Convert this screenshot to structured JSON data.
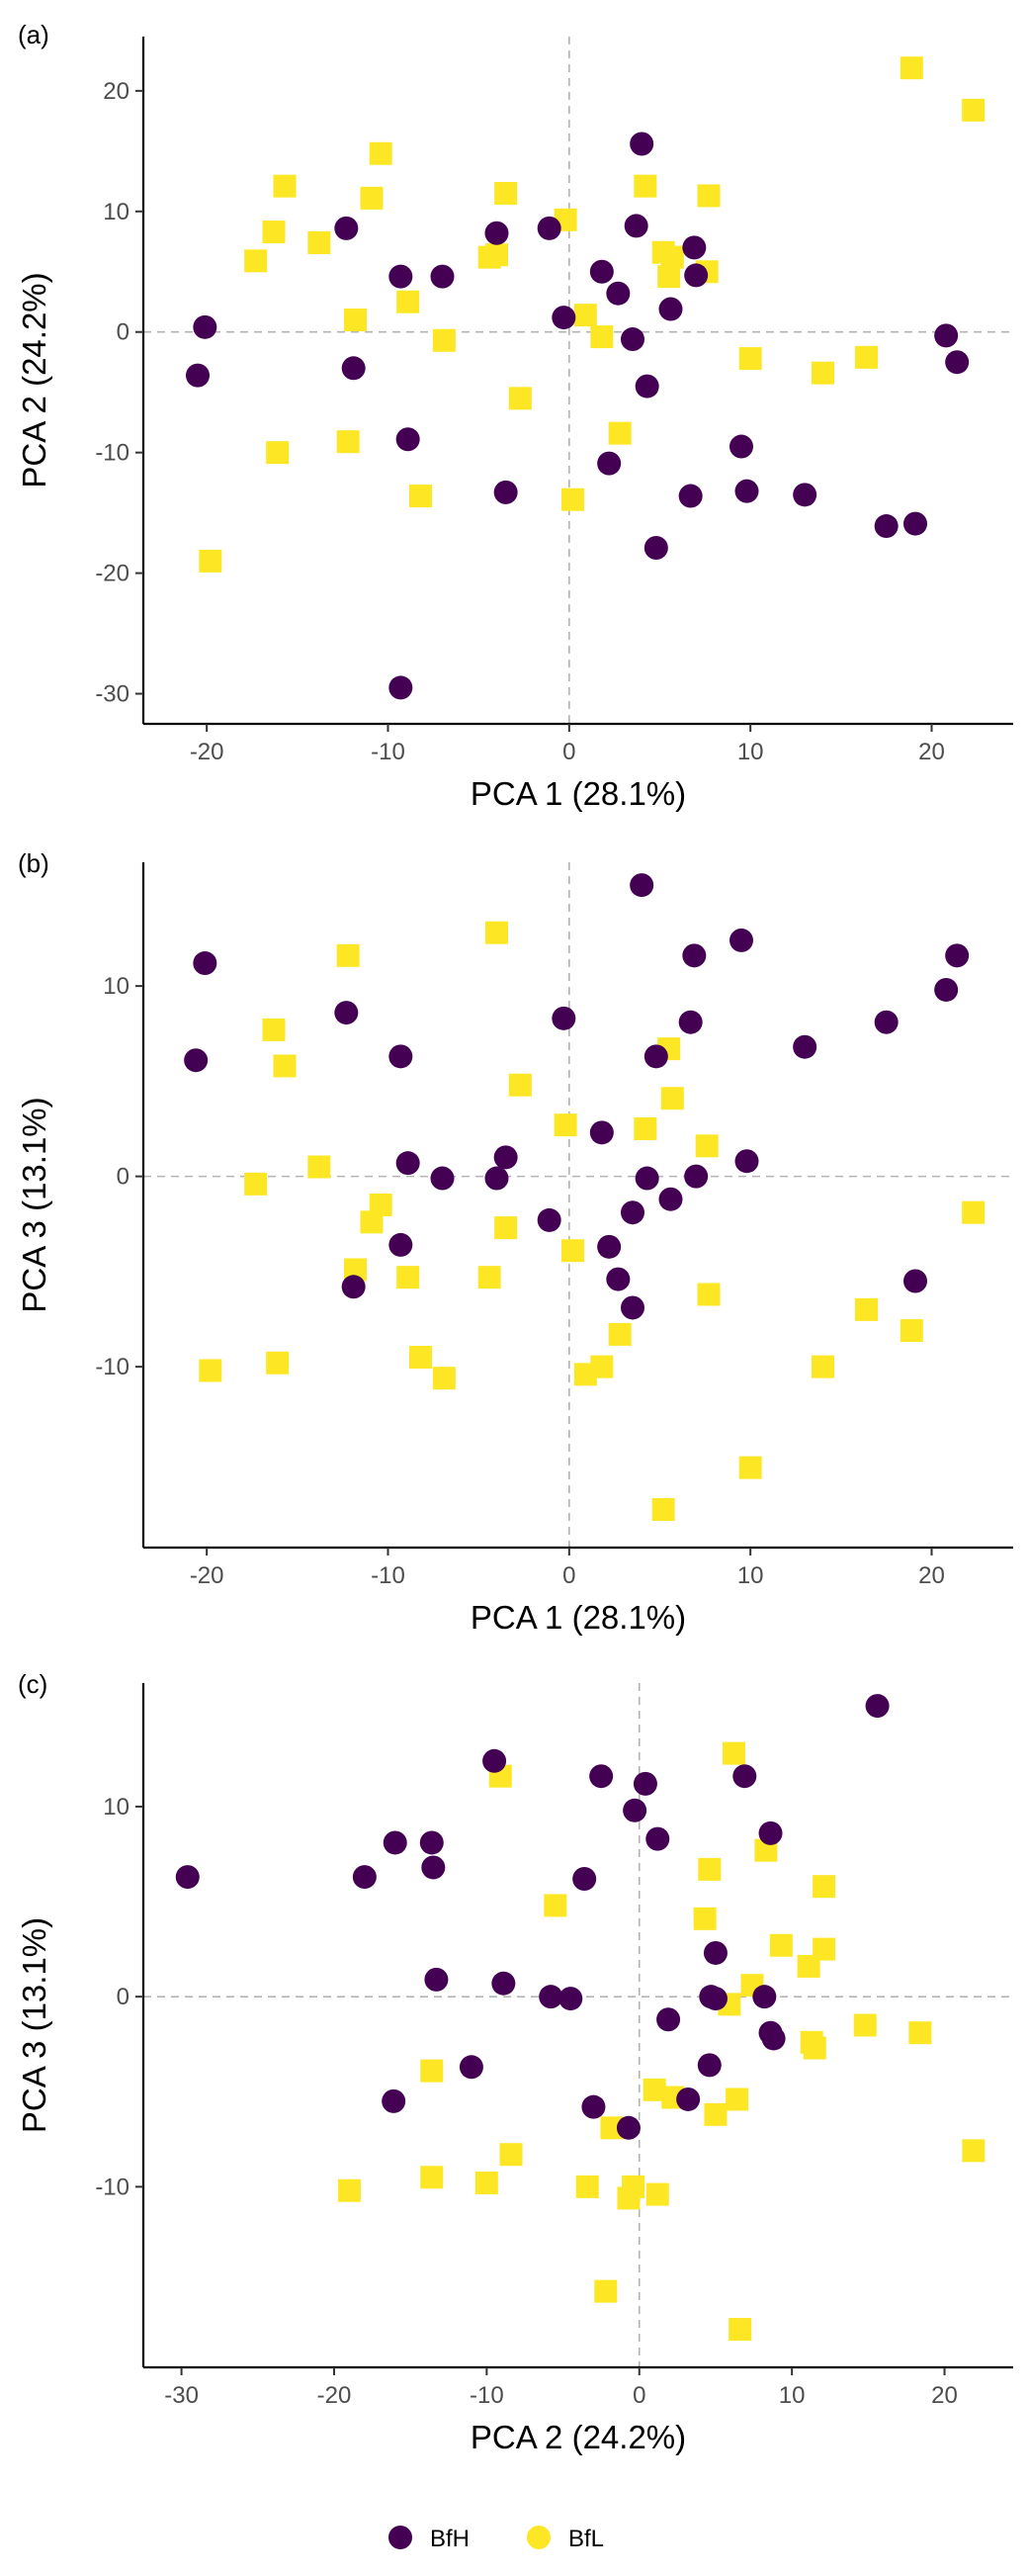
{
  "colors": {
    "BfH": "#440154",
    "BfL": "#FDE725"
  },
  "legend": [
    {
      "key": "BfH",
      "label": "BfH",
      "shape": "circle"
    },
    {
      "key": "BfL",
      "label": "BfL",
      "shape": "square"
    }
  ],
  "chart_data": [
    {
      "type": "scatter",
      "panel_label": "(a)",
      "xlabel": "PCA 1 (28.1%)",
      "ylabel": "PCA 2 (24.2%)",
      "xlim": [
        -23.5,
        24.5
      ],
      "ylim": [
        -32.5,
        24.5
      ],
      "xticks": [
        -20,
        -10,
        0,
        10,
        20
      ],
      "yticks": [
        -30,
        -20,
        -10,
        0,
        10,
        20
      ],
      "series": [
        {
          "name": "BfH",
          "points": [
            [
              -20.5,
              -3.6
            ],
            [
              -20.1,
              0.4
            ],
            [
              -12.3,
              8.6
            ],
            [
              -11.9,
              -3.0
            ],
            [
              -9.3,
              4.6
            ],
            [
              -8.9,
              -8.9
            ],
            [
              -9.3,
              -29.5
            ],
            [
              -7.0,
              4.6
            ],
            [
              -4.0,
              8.2
            ],
            [
              -3.5,
              -13.3
            ],
            [
              -1.1,
              8.6
            ],
            [
              -0.3,
              1.2
            ],
            [
              1.8,
              5.0
            ],
            [
              2.2,
              -10.9
            ],
            [
              2.7,
              3.2
            ],
            [
              3.5,
              -0.6
            ],
            [
              3.7,
              8.8
            ],
            [
              4.0,
              15.6
            ],
            [
              4.3,
              -4.5
            ],
            [
              4.8,
              -17.9
            ],
            [
              5.6,
              1.9
            ],
            [
              6.7,
              -13.6
            ],
            [
              6.9,
              7.0
            ],
            [
              7.0,
              4.7
            ],
            [
              9.5,
              -9.5
            ],
            [
              9.8,
              -13.2
            ],
            [
              13.0,
              -13.5
            ],
            [
              17.5,
              -16.1
            ],
            [
              19.1,
              -15.9
            ],
            [
              20.8,
              -0.3
            ],
            [
              21.4,
              -2.5
            ]
          ]
        },
        {
          "name": "BfL",
          "points": [
            [
              -19.8,
              -19.0
            ],
            [
              -17.3,
              5.9
            ],
            [
              -16.3,
              8.3
            ],
            [
              -16.1,
              -10.0
            ],
            [
              -15.7,
              12.1
            ],
            [
              -13.8,
              7.4
            ],
            [
              -12.2,
              -9.1
            ],
            [
              -11.8,
              1.0
            ],
            [
              -10.9,
              11.1
            ],
            [
              -10.4,
              14.8
            ],
            [
              -8.9,
              2.5
            ],
            [
              -8.2,
              -13.6
            ],
            [
              -6.9,
              -0.7
            ],
            [
              -4.4,
              6.2
            ],
            [
              -4.0,
              6.4
            ],
            [
              -3.5,
              11.5
            ],
            [
              -2.7,
              -5.5
            ],
            [
              -0.2,
              9.3
            ],
            [
              0.2,
              -13.9
            ],
            [
              0.9,
              1.4
            ],
            [
              1.8,
              -0.4
            ],
            [
              2.8,
              -8.4
            ],
            [
              4.2,
              12.1
            ],
            [
              5.2,
              6.6
            ],
            [
              5.5,
              4.6
            ],
            [
              5.7,
              6.2
            ],
            [
              7.6,
              5.0
            ],
            [
              7.7,
              11.3
            ],
            [
              10.0,
              -2.2
            ],
            [
              14.0,
              -3.4
            ],
            [
              16.4,
              -2.1
            ],
            [
              18.9,
              21.9
            ],
            [
              22.3,
              18.4
            ]
          ]
        }
      ]
    },
    {
      "type": "scatter",
      "panel_label": "(b)",
      "xlabel": "PCA 1 (28.1%)",
      "ylabel": "PCA 3 (13.1%)",
      "xlim": [
        -23.5,
        24.5
      ],
      "ylim": [
        -19.5,
        16.5
      ],
      "xticks": [
        -20,
        -10,
        0,
        10,
        20
      ],
      "yticks": [
        -10,
        0,
        10
      ],
      "series": [
        {
          "name": "BfH",
          "points": [
            [
              -20.6,
              6.1
            ],
            [
              -20.1,
              11.2
            ],
            [
              -12.3,
              8.6
            ],
            [
              -11.9,
              -5.8
            ],
            [
              -9.3,
              6.3
            ],
            [
              -9.3,
              -3.6
            ],
            [
              -8.9,
              0.7
            ],
            [
              -7.0,
              -0.1
            ],
            [
              -4.0,
              -0.1
            ],
            [
              -3.5,
              1.0
            ],
            [
              -1.1,
              -2.3
            ],
            [
              -0.3,
              8.3
            ],
            [
              1.8,
              2.3
            ],
            [
              2.2,
              -3.7
            ],
            [
              2.7,
              -5.4
            ],
            [
              3.5,
              -6.9
            ],
            [
              3.5,
              -1.9
            ],
            [
              4.0,
              15.3
            ],
            [
              4.3,
              -0.1
            ],
            [
              4.8,
              6.3
            ],
            [
              5.6,
              -1.2
            ],
            [
              6.7,
              8.1
            ],
            [
              6.9,
              11.6
            ],
            [
              7.0,
              0.0
            ],
            [
              9.5,
              12.4
            ],
            [
              9.8,
              0.8
            ],
            [
              13.0,
              6.8
            ],
            [
              17.5,
              8.1
            ],
            [
              19.1,
              -5.5
            ],
            [
              20.8,
              9.8
            ],
            [
              21.4,
              11.6
            ]
          ]
        },
        {
          "name": "BfL",
          "points": [
            [
              -19.8,
              -10.2
            ],
            [
              -17.3,
              -0.4
            ],
            [
              -16.3,
              7.7
            ],
            [
              -16.1,
              -9.8
            ],
            [
              -15.7,
              5.8
            ],
            [
              -13.8,
              0.5
            ],
            [
              -12.2,
              11.6
            ],
            [
              -11.8,
              -4.9
            ],
            [
              -10.9,
              -2.4
            ],
            [
              -10.4,
              -1.5
            ],
            [
              -8.9,
              -5.3
            ],
            [
              -8.2,
              -9.5
            ],
            [
              -6.9,
              -10.6
            ],
            [
              -4.4,
              -5.3
            ],
            [
              -4.0,
              12.8
            ],
            [
              -3.5,
              -2.7
            ],
            [
              -2.7,
              4.8
            ],
            [
              -0.2,
              2.7
            ],
            [
              0.2,
              -3.9
            ],
            [
              0.9,
              -10.4
            ],
            [
              1.8,
              -10.0
            ],
            [
              2.8,
              -8.3
            ],
            [
              4.2,
              2.5
            ],
            [
              5.2,
              -17.5
            ],
            [
              5.5,
              6.7
            ],
            [
              5.7,
              4.1
            ],
            [
              7.6,
              1.6
            ],
            [
              7.7,
              -6.2
            ],
            [
              10.0,
              -15.3
            ],
            [
              14.0,
              -10.0
            ],
            [
              16.4,
              -7.0
            ],
            [
              18.9,
              -8.1
            ],
            [
              22.3,
              -1.9
            ]
          ]
        }
      ]
    },
    {
      "type": "scatter",
      "panel_label": "(c)",
      "xlabel": "PCA 2 (24.2%)",
      "ylabel": "PCA 3 (13.1%)",
      "xlim": [
        -32.5,
        24.5
      ],
      "ylim": [
        -19.5,
        16.5
      ],
      "xticks": [
        -30,
        -20,
        -10,
        0,
        10,
        20
      ],
      "yticks": [
        -10,
        0,
        10
      ],
      "series": [
        {
          "name": "BfH",
          "points": [
            [
              -29.6,
              6.3
            ],
            [
              -18.0,
              6.3
            ],
            [
              -16.1,
              -5.5
            ],
            [
              -16.0,
              8.1
            ],
            [
              -13.6,
              8.1
            ],
            [
              -13.5,
              6.8
            ],
            [
              -13.3,
              0.9
            ],
            [
              -11.0,
              -3.7
            ],
            [
              -9.5,
              12.4
            ],
            [
              -8.9,
              0.7
            ],
            [
              -4.5,
              -0.1
            ],
            [
              -3.6,
              6.2
            ],
            [
              -3.0,
              -5.8
            ],
            [
              -2.5,
              11.6
            ],
            [
              -0.7,
              -6.9
            ],
            [
              -0.3,
              9.8
            ],
            [
              0.4,
              11.2
            ],
            [
              1.2,
              8.3
            ],
            [
              1.9,
              -1.2
            ],
            [
              3.2,
              -5.4
            ],
            [
              4.6,
              -3.6
            ],
            [
              4.7,
              0.0
            ],
            [
              5.0,
              2.3
            ],
            [
              5.0,
              -0.1
            ],
            [
              6.9,
              11.6
            ],
            [
              8.2,
              0.0
            ],
            [
              8.6,
              8.6
            ],
            [
              8.6,
              -1.9
            ],
            [
              8.8,
              -2.2
            ],
            [
              15.6,
              15.3
            ],
            [
              -5.8,
              0.0
            ]
          ]
        },
        {
          "name": "BfL",
          "points": [
            [
              -19.0,
              -10.2
            ],
            [
              -13.6,
              -3.9
            ],
            [
              -13.6,
              -9.5
            ],
            [
              -10.0,
              -9.8
            ],
            [
              -9.1,
              11.6
            ],
            [
              -8.4,
              -8.3
            ],
            [
              -5.5,
              4.8
            ],
            [
              -3.4,
              -10.0
            ],
            [
              -2.2,
              -15.5
            ],
            [
              -1.8,
              -6.9
            ],
            [
              -0.7,
              -10.6
            ],
            [
              -0.4,
              -10.0
            ],
            [
              1.0,
              -4.9
            ],
            [
              1.2,
              -10.4
            ],
            [
              2.2,
              -5.3
            ],
            [
              4.3,
              4.1
            ],
            [
              4.6,
              6.7
            ],
            [
              5.0,
              -6.2
            ],
            [
              5.9,
              -0.4
            ],
            [
              6.2,
              12.8
            ],
            [
              6.4,
              -5.4
            ],
            [
              6.6,
              -17.5
            ],
            [
              7.4,
              0.6
            ],
            [
              8.3,
              7.7
            ],
            [
              9.3,
              2.7
            ],
            [
              11.1,
              1.6
            ],
            [
              11.3,
              -2.4
            ],
            [
              11.5,
              -2.7
            ],
            [
              12.1,
              5.8
            ],
            [
              12.1,
              2.5
            ],
            [
              14.8,
              -1.5
            ],
            [
              18.4,
              -1.9
            ],
            [
              21.9,
              -8.1
            ]
          ]
        }
      ]
    }
  ]
}
